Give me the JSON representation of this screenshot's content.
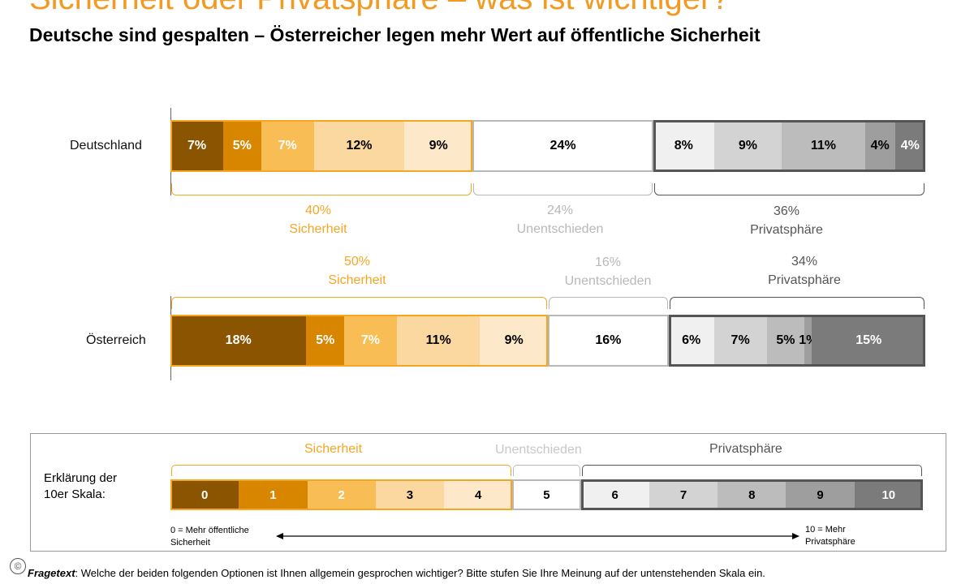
{
  "title": "Sicherheit oder Privatsphäre – was ist wichtiger?",
  "subtitle": "Deutsche sind gespalten – Österreicher legen mehr Wert auf öffentliche Sicherheit",
  "chart_data": {
    "type": "bar",
    "orientation": "horizontal",
    "stacked": true,
    "scale_points": [
      "0",
      "1",
      "2",
      "3",
      "4",
      "5",
      "6",
      "7",
      "8",
      "9",
      "10"
    ],
    "series": [
      {
        "name": "Deutschland",
        "values": [
          7,
          5,
          7,
          12,
          9,
          24,
          8,
          9,
          11,
          4,
          4
        ],
        "labels": [
          "7%",
          "5%",
          "7%",
          "12%",
          "9%",
          "24%",
          "8%",
          "9%",
          "11%",
          "4%",
          "4%"
        ]
      },
      {
        "name": "Österreich",
        "values": [
          18,
          5,
          7,
          11,
          9,
          16,
          6,
          7,
          5,
          1,
          15
        ],
        "labels": [
          "18%",
          "5%",
          "7%",
          "11%",
          "9%",
          "16%",
          "6%",
          "7%",
          "5%",
          "1%",
          "15%"
        ]
      }
    ],
    "groups": {
      "Deutschland": [
        {
          "pct": "40%",
          "label": "Sicherheit"
        },
        {
          "pct": "24%",
          "label": "Unentschieden"
        },
        {
          "pct": "36%",
          "label": "Privatsphäre"
        }
      ],
      "Österreich": [
        {
          "pct": "50%",
          "label": "Sicherheit"
        },
        {
          "pct": "16%",
          "label": "Unentschieden"
        },
        {
          "pct": "34%",
          "label": "Privatsphäre"
        }
      ]
    },
    "segment_colors": [
      "#8b5400",
      "#d88500",
      "#f8be55",
      "#fbd8a0",
      "#fde9ca",
      "#ffffff",
      "#f0f0f0",
      "#d3d3d3",
      "#bcbcbc",
      "#9e9e9e",
      "#7b7b7b"
    ],
    "text_colors": [
      "#ffffff",
      "#ffffff",
      "#ffffff",
      "#000000",
      "#000000",
      "#000000",
      "#000000",
      "#000000",
      "#000000",
      "#000000",
      "#ffffff"
    ],
    "group_colors": {
      "safety": "#f5a623",
      "neutral": "#b8b8b8",
      "privacy": "#555555"
    }
  },
  "legend": {
    "label_line1": "Erklärung der",
    "label_line2": "10er Skala:",
    "safety": "Sicherheit",
    "neutral": "Unentschieden",
    "privacy": "Privatsphäre",
    "scale": [
      "0",
      "1",
      "2",
      "3",
      "4",
      "5",
      "6",
      "7",
      "8",
      "9",
      "10"
    ],
    "left_note_1": "0 = Mehr öffentliche",
    "left_note_2": "Sicherheit",
    "right_note_1": "10 = Mehr",
    "right_note_2": "Privatsphäre"
  },
  "footer": {
    "label": "Fragetext",
    "text": ": Welche der beiden folgenden Optionen ist Ihnen allgemein gesprochen wichtiger? Bitte stufen Sie Ihre Meinung auf der untenstehenden  Skala ein."
  },
  "copyright_symbol": "©"
}
